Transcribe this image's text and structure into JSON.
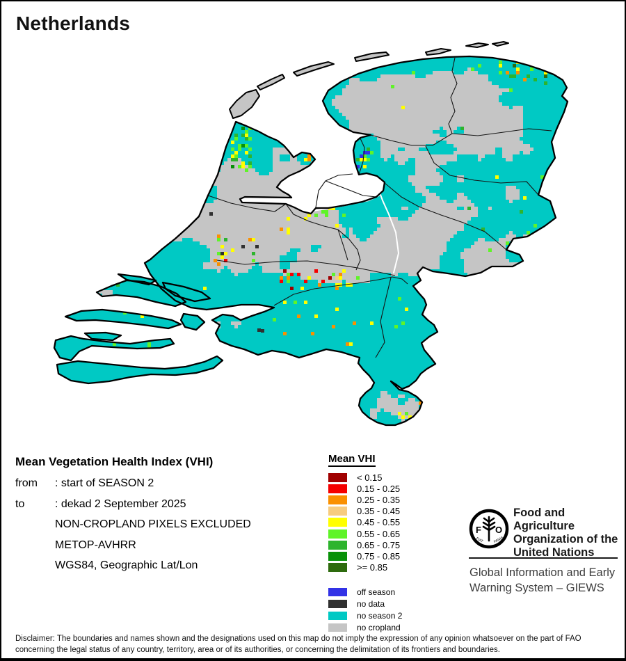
{
  "title": "Netherlands",
  "info_block": {
    "heading": "Mean Vegetation Health Index (VHI)",
    "lines": [
      {
        "label": "from",
        "value": ": start of SEASON 2"
      },
      {
        "label": "to",
        "value": ": dekad 2 September 2025"
      },
      {
        "label": "",
        "value": "NON-CROPLAND PIXELS EXCLUDED"
      },
      {
        "label": "",
        "value": "METOP-AVHRR"
      },
      {
        "label": "",
        "value": "WGS84, Geographic Lat/Lon"
      }
    ]
  },
  "legend": {
    "title": "Mean VHI",
    "classes": [
      {
        "label": "< 0.15",
        "color": "#A00000"
      },
      {
        "label": "0.15 - 0.25",
        "color": "#F50000"
      },
      {
        "label": "0.25 - 0.35",
        "color": "#FA9000"
      },
      {
        "label": "0.35 - 0.45",
        "color": "#F7CC7F"
      },
      {
        "label": "0.45 - 0.55",
        "color": "#FFFF00"
      },
      {
        "label": "0.55 - 0.65",
        "color": "#5FF428"
      },
      {
        "label": "0.65 - 0.75",
        "color": "#2DB42D"
      },
      {
        "label": "0.75 - 0.85",
        "color": "#089108"
      },
      {
        "label": ">= 0.85",
        "color": "#2E6B0E"
      }
    ],
    "status_classes": [
      {
        "label": "off season",
        "color": "#3232E6"
      },
      {
        "label": "no data",
        "color": "#303030"
      },
      {
        "label": "no season 2",
        "color": "#00C9C4"
      },
      {
        "label": "no cropland",
        "color": "#C5C5C5"
      }
    ]
  },
  "branding": {
    "org_lines": [
      "Food and Agriculture",
      "Organization of the",
      "United Nations"
    ],
    "logo_letters": [
      "F",
      "O"
    ],
    "logo_motto": [
      "FIAT",
      "PANIS"
    ],
    "system_lines": [
      "Global Information and Early",
      "Warning System – GIEWS"
    ]
  },
  "disclaimer_lines": [
    "Disclaimer: The boundaries and names shown and the designations used on this map do not imply the expression of any opinion whatsoever on the part of FAO",
    "concerning the legal status of any country, territory, area or of its authorities, or concerning the delimitation of its frontiers and boundaries."
  ]
}
